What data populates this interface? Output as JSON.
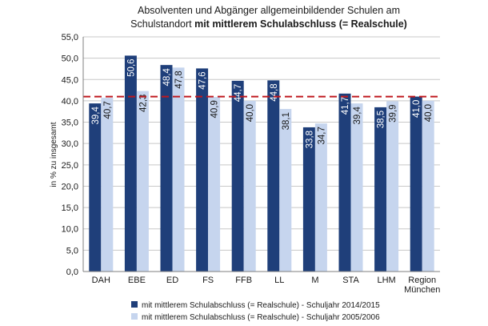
{
  "chart_data": {
    "type": "bar",
    "title_line1": "Absolventen  und Abgänger allgemeinbildender Schulen am",
    "title_line2_plain": "Schulstandort  ",
    "title_line2_bold": "mit mittlerem  Schulabschluss (= Realschule)",
    "ylabel": "in % zu insgesamt",
    "xlabel": "",
    "ylim": [
      0,
      55
    ],
    "yticks": [
      "0,0",
      "5,0",
      "10,0",
      "15,0",
      "20,0",
      "25,0",
      "30,0",
      "35,0",
      "40,0",
      "45,0",
      "50,0",
      "55,0"
    ],
    "grid": true,
    "legend_position": "bottom",
    "categories": [
      "DAH",
      "EBE",
      "ED",
      "FS",
      "FFB",
      "LL",
      "M",
      "STA",
      "LHM",
      "Region|München"
    ],
    "series": [
      {
        "name": "mit mittlerem Schulabschluss (= Realschule) - Schuljahr 2014/2015",
        "color": "#1f3f7a",
        "values": [
          39.4,
          50.6,
          48.4,
          47.6,
          44.7,
          44.8,
          33.8,
          41.7,
          38.5,
          41.0
        ],
        "labels": [
          "39,4",
          "50,6",
          "48,4",
          "47,6",
          "44,7",
          "44,8",
          "33,8",
          "41,7",
          "38,5",
          "41,0"
        ]
      },
      {
        "name": "mit mittlerem Schulabschluss (= Realschule) - Schuljahr 2005/2006",
        "color": "#c6d5ee",
        "values": [
          40.7,
          42.3,
          47.8,
          40.9,
          40.0,
          38.1,
          34.7,
          39.4,
          39.9,
          40.0
        ],
        "labels": [
          "40,7",
          "42,3",
          "47,8",
          "40,9",
          "40,0",
          "38,1",
          "34,7",
          "39,4",
          "39,9",
          "40,0"
        ]
      }
    ],
    "reference_line": {
      "value": 41.0,
      "color": "#c0191f"
    },
    "colors": {
      "grid": "#c8c8c8",
      "axis": "#7f7f7f"
    }
  }
}
